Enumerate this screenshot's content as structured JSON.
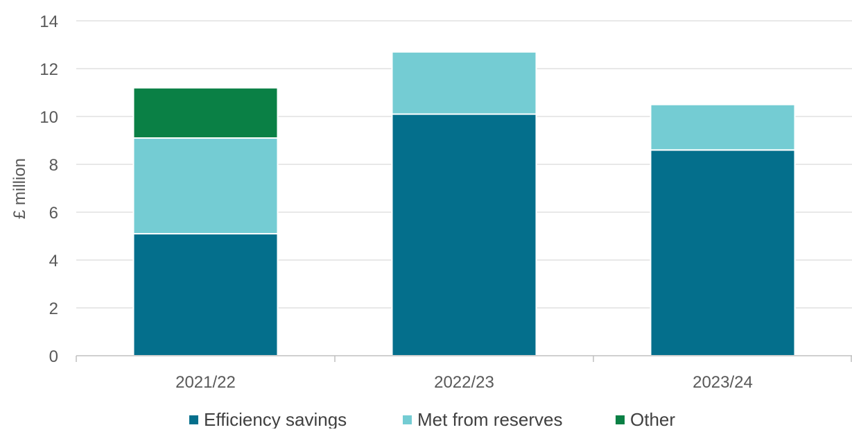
{
  "chart_data": {
    "type": "bar",
    "stacked": true,
    "categories": [
      "2021/22",
      "2022/23",
      "2023/24"
    ],
    "series": [
      {
        "name": "Efficiency savings",
        "values": [
          5.1,
          10.1,
          8.6
        ],
        "color": "#046F8C"
      },
      {
        "name": "Met from reserves",
        "values": [
          4.0,
          2.6,
          1.9
        ],
        "color": "#74CCD3"
      },
      {
        "name": "Other",
        "values": [
          2.1,
          0,
          0
        ],
        "color": "#0A8045"
      }
    ],
    "title": "",
    "xlabel": "",
    "ylabel": "£ million",
    "ylim": [
      0,
      14
    ],
    "yticks": [
      0,
      2,
      4,
      6,
      8,
      10,
      12,
      14
    ],
    "grid": true,
    "legend_position": "bottom"
  }
}
